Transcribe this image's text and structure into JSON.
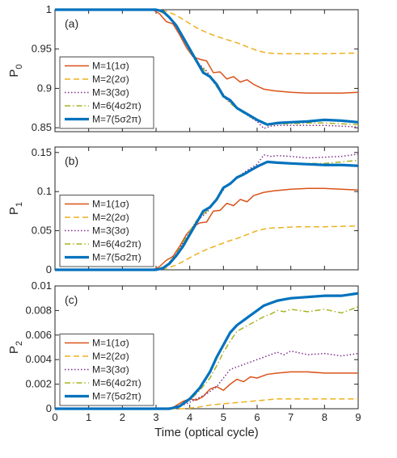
{
  "chart_data": {
    "type": "line",
    "xlabel": "Time (optical cycle)",
    "xlim": [
      0,
      9
    ],
    "xticks": [
      "0",
      "1",
      "2",
      "3",
      "4",
      "5",
      "6",
      "7",
      "8",
      "9"
    ],
    "colors": {
      "M=1(1σ)": "#d95319",
      "M=2(2σ)": "#edb120",
      "M=3(3σ)": "#7e2f8e",
      "M=6(4σ2π)": "#a8b424",
      "M=7(5σ2π)": "#0072bd"
    },
    "legend_placement": "lower-left",
    "panels": [
      {
        "label": "(a)",
        "ylabel_main": "P",
        "ylabel_sub": "0",
        "ylim": [
          0.845,
          1.0
        ],
        "yticks": [
          0.85,
          0.9,
          0.95,
          1
        ],
        "yticklabels": [
          "0.85",
          "0.9",
          "0.95",
          "1"
        ],
        "legend": [
          "M=1(1σ)",
          "M=2(2σ)",
          "M=3(3σ)",
          "M=6(4σ2π)",
          "M=7(5σ2π)"
        ],
        "series": [
          {
            "name": "M=1(1σ)",
            "x": [
              0,
              2.9,
              3.1,
              3.3,
              3.5,
              3.7,
              3.9,
              4.1,
              4.3,
              4.5,
              4.7,
              4.9,
              5.1,
              5.3,
              5.5,
              5.7,
              5.9,
              6.2,
              6.5,
              7.0,
              7.5,
              8.0,
              8.5,
              9.0
            ],
            "y": [
              1.0,
              1.0,
              0.995,
              0.985,
              0.982,
              0.968,
              0.952,
              0.94,
              0.937,
              0.935,
              0.92,
              0.921,
              0.912,
              0.915,
              0.908,
              0.911,
              0.905,
              0.899,
              0.897,
              0.895,
              0.894,
              0.894,
              0.894,
              0.895
            ]
          },
          {
            "name": "M=2(2σ)",
            "x": [
              0,
              3.0,
              3.3,
              3.6,
              3.9,
              4.2,
              4.5,
              4.8,
              5.1,
              5.4,
              5.7,
              6.0,
              6.3,
              6.7,
              7.2,
              8.0,
              9.0
            ],
            "y": [
              1.0,
              1.0,
              0.998,
              0.993,
              0.985,
              0.977,
              0.971,
              0.966,
              0.962,
              0.958,
              0.953,
              0.948,
              0.945,
              0.944,
              0.944,
              0.944,
              0.945
            ]
          },
          {
            "name": "M=3(3σ)",
            "x": [
              0,
              3.0,
              3.3,
              3.6,
              3.9,
              4.2,
              4.5,
              4.8,
              5.1,
              5.4,
              5.7,
              6.0,
              6.2,
              6.4,
              6.6,
              7.0,
              7.5,
              8.0,
              8.5,
              9.0
            ],
            "y": [
              1.0,
              1.0,
              0.994,
              0.978,
              0.955,
              0.934,
              0.922,
              0.905,
              0.886,
              0.875,
              0.866,
              0.858,
              0.849,
              0.852,
              0.853,
              0.853,
              0.853,
              0.853,
              0.852,
              0.851
            ]
          },
          {
            "name": "M=6(4σ2π)",
            "x": [
              0,
              3.0,
              3.3,
              3.6,
              3.9,
              4.2,
              4.5,
              4.8,
              5.1,
              5.4,
              5.7,
              6.0,
              6.3,
              6.6,
              7.0,
              7.5,
              8.0,
              8.5,
              9.0
            ],
            "y": [
              1.0,
              1.0,
              0.994,
              0.979,
              0.955,
              0.933,
              0.92,
              0.902,
              0.885,
              0.874,
              0.866,
              0.859,
              0.853,
              0.855,
              0.855,
              0.856,
              0.856,
              0.855,
              0.854
            ]
          },
          {
            "name": "M=7(5σ2π)",
            "x": [
              0,
              3.0,
              3.2,
              3.4,
              3.6,
              3.8,
              4.0,
              4.2,
              4.4,
              4.6,
              4.8,
              5.0,
              5.2,
              5.4,
              5.6,
              5.8,
              6.0,
              6.3,
              6.6,
              7.0,
              7.5,
              8.0,
              8.5,
              9.0
            ],
            "y": [
              1.0,
              1.0,
              0.998,
              0.99,
              0.98,
              0.965,
              0.95,
              0.935,
              0.92,
              0.915,
              0.905,
              0.89,
              0.885,
              0.875,
              0.87,
              0.865,
              0.86,
              0.854,
              0.856,
              0.857,
              0.858,
              0.86,
              0.859,
              0.857
            ]
          }
        ]
      },
      {
        "label": "(b)",
        "ylabel_main": "P",
        "ylabel_sub": "1",
        "ylim": [
          0,
          0.157
        ],
        "yticks": [
          0,
          0.05,
          0.1,
          0.15
        ],
        "yticklabels": [
          "0",
          "0.05",
          "0.1",
          "0.15"
        ],
        "legend": [
          "M=1(1σ)",
          "M=2(2σ)",
          "M=3(3σ)",
          "M=6(4σ2π)",
          "M=7(5σ2π)"
        ],
        "series": [
          {
            "name": "M=1(1σ)",
            "x": [
              0,
              2.9,
              3.1,
              3.3,
              3.5,
              3.7,
              3.9,
              4.1,
              4.3,
              4.5,
              4.7,
              4.9,
              5.1,
              5.3,
              5.5,
              5.7,
              5.9,
              6.2,
              6.5,
              7.0,
              7.5,
              8.0,
              8.5,
              9.0
            ],
            "y": [
              0,
              0,
              0.004,
              0.012,
              0.017,
              0.03,
              0.045,
              0.055,
              0.06,
              0.061,
              0.075,
              0.076,
              0.085,
              0.082,
              0.09,
              0.087,
              0.095,
              0.099,
              0.101,
              0.103,
              0.104,
              0.104,
              0.103,
              0.102
            ]
          },
          {
            "name": "M=2(2σ)",
            "x": [
              0,
              3.0,
              3.3,
              3.6,
              3.9,
              4.2,
              4.5,
              4.8,
              5.1,
              5.4,
              5.7,
              6.0,
              6.3,
              6.7,
              7.2,
              8.0,
              9.0
            ],
            "y": [
              0,
              0,
              0.002,
              0.006,
              0.013,
              0.02,
              0.026,
              0.031,
              0.036,
              0.04,
              0.045,
              0.05,
              0.053,
              0.054,
              0.055,
              0.055,
              0.056
            ]
          },
          {
            "name": "M=3(3σ)",
            "x": [
              0,
              3.0,
              3.3,
              3.6,
              3.9,
              4.2,
              4.5,
              4.8,
              5.1,
              5.4,
              5.7,
              6.0,
              6.2,
              6.4,
              6.6,
              7.0,
              7.5,
              8.0,
              8.5,
              9.0
            ],
            "y": [
              0,
              0,
              0.005,
              0.02,
              0.042,
              0.062,
              0.073,
              0.09,
              0.108,
              0.118,
              0.127,
              0.135,
              0.147,
              0.145,
              0.146,
              0.145,
              0.143,
              0.144,
              0.145,
              0.148
            ]
          },
          {
            "name": "M=6(4σ2π)",
            "x": [
              0,
              3.0,
              3.3,
              3.6,
              3.9,
              4.2,
              4.5,
              4.8,
              5.1,
              5.4,
              5.7,
              6.0,
              6.3,
              6.6,
              7.0,
              7.5,
              8.0,
              8.5,
              9.0
            ],
            "y": [
              0,
              0,
              0.005,
              0.02,
              0.042,
              0.063,
              0.075,
              0.092,
              0.108,
              0.118,
              0.125,
              0.131,
              0.138,
              0.137,
              0.136,
              0.136,
              0.136,
              0.138,
              0.14
            ]
          },
          {
            "name": "M=7(5σ2π)",
            "x": [
              0,
              3.0,
              3.2,
              3.4,
              3.6,
              3.8,
              4.0,
              4.2,
              4.4,
              4.6,
              4.8,
              5.0,
              5.2,
              5.4,
              5.6,
              5.8,
              6.0,
              6.3,
              6.6,
              7.0,
              7.5,
              8.0,
              8.5,
              9.0
            ],
            "y": [
              0,
              0,
              0.002,
              0.008,
              0.018,
              0.03,
              0.045,
              0.06,
              0.075,
              0.08,
              0.09,
              0.105,
              0.11,
              0.118,
              0.122,
              0.127,
              0.132,
              0.138,
              0.137,
              0.136,
              0.135,
              0.134,
              0.134,
              0.133
            ]
          }
        ]
      },
      {
        "label": "(c)",
        "ylabel_main": "P",
        "ylabel_sub": "2",
        "ylim": [
          0,
          0.01
        ],
        "yticks": [
          0,
          0.002,
          0.004,
          0.006,
          0.008,
          0.01
        ],
        "yticklabels": [
          "0",
          "0.002",
          "0.004",
          "0.006",
          "0.008",
          "0.01"
        ],
        "legend": [
          "M=1(1σ)",
          "M=2(2σ)",
          "M=3(3σ)",
          "M=6(4σ2π)",
          "M=7(5σ2π)"
        ],
        "series": [
          {
            "name": "M=1(1σ)",
            "x": [
              0,
              3.2,
              3.5,
              3.8,
              4.0,
              4.2,
              4.4,
              4.6,
              4.8,
              5.0,
              5.2,
              5.4,
              5.6,
              5.8,
              6.0,
              6.3,
              6.6,
              7.0,
              7.5,
              8.0,
              8.5,
              9.0
            ],
            "y": [
              0,
              0,
              0.0001,
              0.0006,
              0.0008,
              0.0007,
              0.001,
              0.0016,
              0.0018,
              0.0015,
              0.002,
              0.0024,
              0.0022,
              0.0026,
              0.0025,
              0.0028,
              0.0029,
              0.003,
              0.003,
              0.0029,
              0.0029,
              0.0029
            ]
          },
          {
            "name": "M=2(2σ)",
            "x": [
              0,
              3.8,
              4.2,
              4.6,
              5.0,
              5.4,
              5.8,
              6.2,
              6.6,
              7.0,
              7.5,
              8.0,
              8.5,
              9.0
            ],
            "y": [
              0,
              0,
              0.0001,
              0.0003,
              0.0004,
              0.0005,
              0.0006,
              0.0007,
              0.0008,
              0.0008,
              0.0008,
              0.0008,
              0.0008,
              0.0008
            ]
          },
          {
            "name": "M=3(3σ)",
            "x": [
              0,
              3.3,
              3.6,
              3.9,
              4.2,
              4.5,
              4.8,
              5.0,
              5.2,
              5.4,
              5.6,
              5.8,
              6.0,
              6.2,
              6.4,
              6.6,
              6.8,
              7.0,
              7.5,
              8.0,
              8.5,
              9.0
            ],
            "y": [
              0,
              0,
              0.0001,
              0.0004,
              0.0008,
              0.0012,
              0.0018,
              0.0025,
              0.0032,
              0.0034,
              0.0036,
              0.0038,
              0.004,
              0.0042,
              0.0044,
              0.0046,
              0.0044,
              0.0047,
              0.0044,
              0.0045,
              0.0043,
              0.0045
            ]
          },
          {
            "name": "M=6(4σ2π)",
            "x": [
              0,
              3.4,
              3.7,
              4.0,
              4.3,
              4.6,
              4.8,
              5.0,
              5.2,
              5.4,
              5.6,
              5.8,
              6.0,
              6.2,
              6.4,
              6.6,
              6.8,
              7.0,
              7.5,
              8.0,
              8.5,
              9.0
            ],
            "y": [
              0,
              0,
              0.0002,
              0.0007,
              0.0015,
              0.0025,
              0.0035,
              0.0046,
              0.0055,
              0.0063,
              0.0066,
              0.0069,
              0.0072,
              0.0075,
              0.0077,
              0.008,
              0.0079,
              0.0081,
              0.0079,
              0.0081,
              0.0078,
              0.0083
            ]
          },
          {
            "name": "M=7(5σ2π)",
            "x": [
              0,
              3.4,
              3.7,
              4.0,
              4.3,
              4.6,
              4.8,
              5.0,
              5.2,
              5.4,
              5.6,
              5.8,
              6.0,
              6.2,
              6.4,
              6.6,
              6.8,
              7.0,
              7.5,
              8.0,
              8.5,
              9.0
            ],
            "y": [
              0,
              0,
              0.0002,
              0.0008,
              0.0017,
              0.003,
              0.0042,
              0.0052,
              0.0062,
              0.0068,
              0.0072,
              0.0076,
              0.008,
              0.0084,
              0.0086,
              0.0088,
              0.0089,
              0.009,
              0.0091,
              0.0092,
              0.0092,
              0.0094
            ]
          }
        ]
      }
    ]
  }
}
